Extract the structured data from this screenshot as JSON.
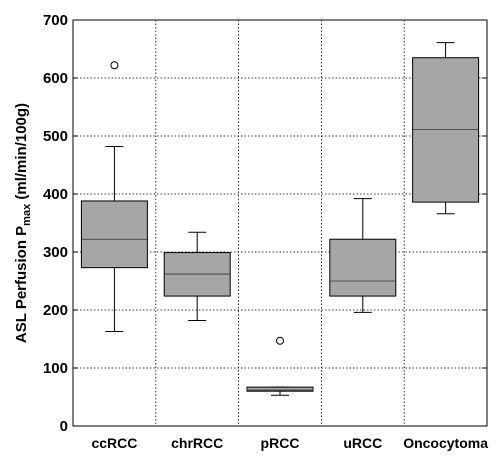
{
  "chart_data": {
    "type": "box",
    "categories": [
      "ccRCC",
      "chrRCC",
      "pRCC",
      "uRCC",
      "Oncocytoma"
    ],
    "boxes": [
      {
        "whisker_low": 163,
        "q1": 273,
        "median": 322,
        "q3": 388,
        "whisker_high": 482,
        "outliers": [
          622
        ]
      },
      {
        "whisker_low": 182,
        "q1": 224,
        "median": 262,
        "q3": 299,
        "whisker_high": 334,
        "outliers": []
      },
      {
        "whisker_low": 53,
        "q1": 60,
        "median": 62,
        "q3": 67,
        "whisker_high": 67,
        "outliers": [
          147
        ]
      },
      {
        "whisker_low": 196,
        "q1": 224,
        "median": 250,
        "q3": 322,
        "whisker_high": 392,
        "outliers": []
      },
      {
        "whisker_low": 366,
        "q1": 386,
        "median": 511,
        "q3": 635,
        "whisker_high": 661,
        "outliers": []
      }
    ],
    "ylabel_main": "ASL Perfusion P",
    "ylabel_sub": "max",
    "ylabel_unit": " (ml/min/100g)",
    "ylim": [
      0,
      700
    ],
    "yticks": [
      0,
      100,
      200,
      300,
      400,
      500,
      600,
      700
    ],
    "grid": true,
    "box_color": "#a6a6a6"
  }
}
